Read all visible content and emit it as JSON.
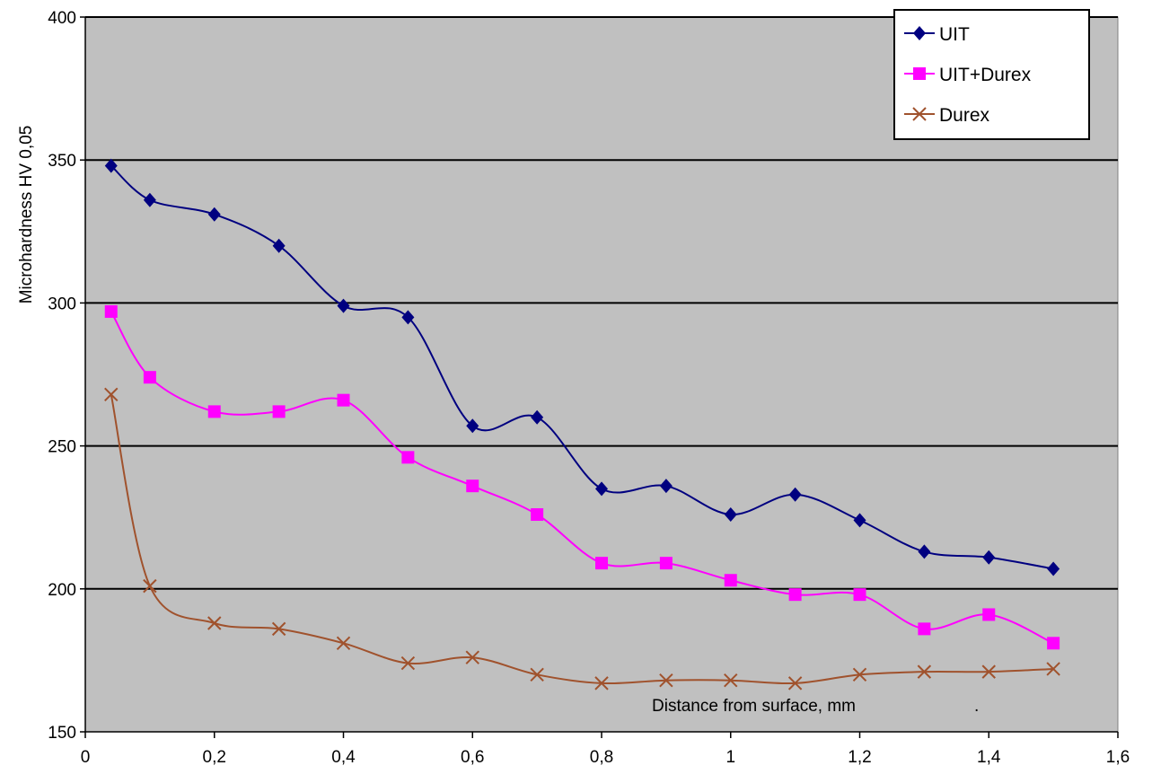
{
  "chart_data": {
    "type": "line",
    "xlabel": "Distance from surface, mm",
    "xlabel_suffix": ".",
    "ylabel": "Microhardness HV 0,05",
    "xlim": [
      0,
      1.6
    ],
    "ylim": [
      150,
      400
    ],
    "x_ticks": [
      0,
      0.2,
      0.4,
      0.6,
      0.8,
      1,
      1.2,
      1.4,
      1.6
    ],
    "x_tick_labels": [
      "0",
      "0,2",
      "0,4",
      "0,6",
      "0,8",
      "1",
      "1,2",
      "1,4",
      "1,6"
    ],
    "y_ticks": [
      150,
      200,
      250,
      300,
      350,
      400
    ],
    "y_tick_labels": [
      "150",
      "200",
      "250",
      "300",
      "350",
      "400"
    ],
    "grid": "horizontal",
    "plot_background": "#c0c0c0",
    "legend_position": "top-right",
    "x": [
      0.04,
      0.1,
      0.2,
      0.3,
      0.4,
      0.5,
      0.6,
      0.7,
      0.8,
      0.9,
      1.0,
      1.1,
      1.2,
      1.3,
      1.4,
      1.5
    ],
    "series": [
      {
        "name": "UIT",
        "color": "#000080",
        "marker": "diamond",
        "values": [
          348,
          336,
          331,
          320,
          299,
          295,
          257,
          260,
          235,
          236,
          226,
          233,
          224,
          213,
          211,
          207
        ]
      },
      {
        "name": "UIT+Durex",
        "color": "#ff00ff",
        "marker": "square",
        "values": [
          297,
          274,
          262,
          262,
          266,
          246,
          236,
          226,
          209,
          209,
          203,
          198,
          198,
          186,
          191,
          181
        ]
      },
      {
        "name": "Durex",
        "color": "#a0522d",
        "marker": "x",
        "values": [
          268,
          201,
          188,
          186,
          181,
          174,
          176,
          170,
          167,
          168,
          168,
          167,
          170,
          171,
          171,
          172
        ]
      }
    ]
  }
}
